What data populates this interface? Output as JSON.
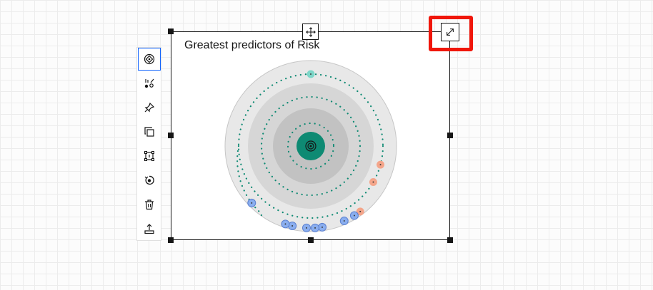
{
  "card": {
    "title": "Greatest predictors of Risk"
  },
  "toolbar": {
    "tools": [
      "ai-explain-icon",
      "chart-settings-icon",
      "pin-icon",
      "duplicate-icon",
      "group-icon",
      "rerun-icon",
      "trash-icon",
      "export-icon"
    ],
    "active_tool": "ai-explain-icon"
  },
  "chart_data": {
    "type": "radial",
    "title": "Greatest predictors of Risk",
    "rings": 4,
    "points": [
      {
        "category": "teal",
        "ring": 4,
        "angle_deg": 0
      },
      {
        "category": "orange",
        "ring": 4,
        "angle_deg": 105
      },
      {
        "category": "orange",
        "ring": 4,
        "angle_deg": 120
      },
      {
        "category": "orange",
        "ring": 4,
        "angle_deg": 143
      },
      {
        "category": "blue",
        "ring": 4,
        "angle_deg": 148
      },
      {
        "category": "blue",
        "ring": 4,
        "angle_deg": 156
      },
      {
        "category": "blue",
        "ring": 4,
        "angle_deg": 172
      },
      {
        "category": "blue",
        "ring": 4,
        "angle_deg": 177
      },
      {
        "category": "blue",
        "ring": 4,
        "angle_deg": 183
      },
      {
        "category": "blue",
        "ring": 4,
        "angle_deg": 193
      },
      {
        "category": "blue",
        "ring": 4,
        "angle_deg": 198
      },
      {
        "category": "blue",
        "ring": 4,
        "angle_deg": 226
      }
    ],
    "colors": {
      "teal": "#7dd6c8",
      "orange": "#f4a58a",
      "blue": "#8aaeef",
      "center": "#0e8a73",
      "orbit": "#0e8a73"
    }
  }
}
